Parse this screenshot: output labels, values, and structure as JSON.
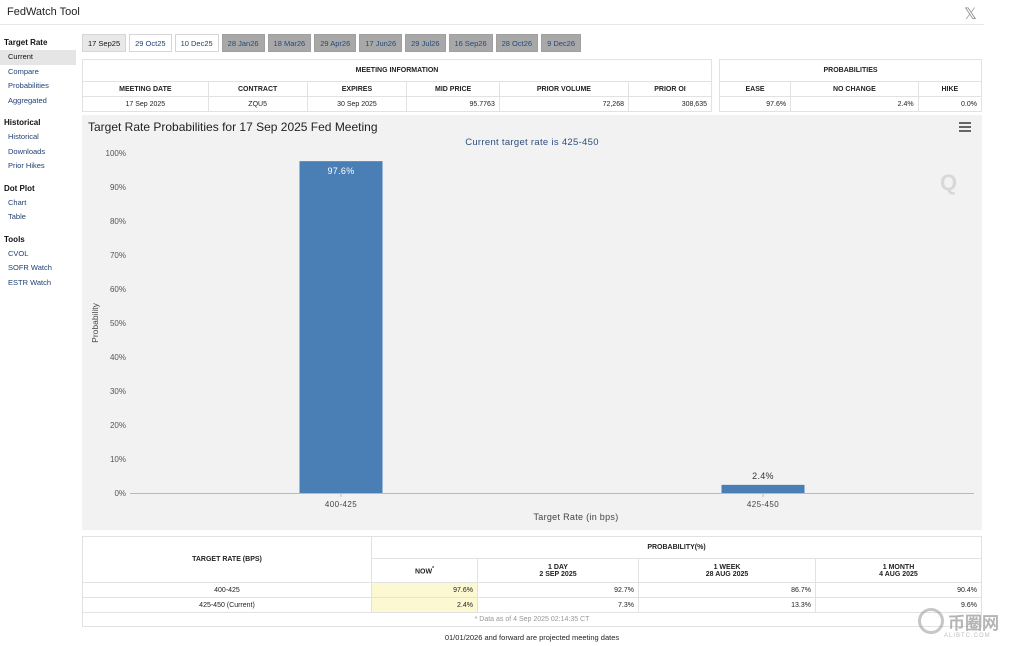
{
  "app": {
    "title": "FedWatch Tool",
    "x_icon": "𝕏"
  },
  "sidebar": {
    "sections": [
      {
        "title": "Target Rate",
        "items": [
          "Current",
          "Compare",
          "Probabilities",
          "Aggregated"
        ]
      },
      {
        "title": "Historical",
        "items": [
          "Historical",
          "Downloads",
          "Prior Hikes"
        ]
      },
      {
        "title": "Dot Plot",
        "items": [
          "Chart",
          "Table"
        ]
      },
      {
        "title": "Tools",
        "items": [
          "CVOL",
          "SOFR Watch",
          "ESTR Watch"
        ]
      }
    ],
    "active_item": "Current"
  },
  "tabs": [
    "17 Sep25",
    "29 Oct25",
    "10 Dec25",
    "28 Jan26",
    "18 Mar26",
    "29 Apr26",
    "17 Jun26",
    "29 Jul26",
    "16 Sep26",
    "28 Oct26",
    "9 Dec26"
  ],
  "meeting_info": {
    "section_title": "MEETING INFORMATION",
    "headers": [
      "MEETING DATE",
      "CONTRACT",
      "EXPIRES",
      "MID PRICE",
      "PRIOR VOLUME",
      "PRIOR OI"
    ],
    "values": [
      "17 Sep 2025",
      "ZQU5",
      "30 Sep 2025",
      "95.7763",
      "72,268",
      "308,635"
    ]
  },
  "probabilities": {
    "section_title": "PROBABILITIES",
    "headers": [
      "EASE",
      "NO CHANGE",
      "HIKE"
    ],
    "values": [
      "97.6%",
      "2.4%",
      "0.0%"
    ]
  },
  "chart_data": {
    "type": "bar",
    "title": "Target Rate Probabilities for 17 Sep 2025 Fed Meeting",
    "subtitle": "Current target rate is 425-450",
    "xlabel": "Target Rate (in bps)",
    "ylabel": "Probability",
    "categories": [
      "400-425",
      "425-450"
    ],
    "values": [
      97.6,
      2.4
    ],
    "data_labels": [
      "97.6%",
      "2.4%"
    ],
    "ylim": [
      0,
      100
    ],
    "yticks": [
      "0%",
      "10%",
      "20%",
      "30%",
      "40%",
      "50%",
      "60%",
      "70%",
      "80%",
      "90%",
      "100%"
    ],
    "bar_color": "#4a7fb5",
    "grid": false,
    "legend": "none"
  },
  "prob_table": {
    "row_header": "TARGET RATE (BPS)",
    "group_header": "PROBABILITY(%)",
    "columns": [
      {
        "line1": "NOW",
        "marker": "*",
        "line2": ""
      },
      {
        "line1": "1 DAY",
        "line2": "2 SEP 2025"
      },
      {
        "line1": "1 WEEK",
        "line2": "28 AUG 2025"
      },
      {
        "line1": "1 MONTH",
        "line2": "4 AUG 2025"
      }
    ],
    "rows": [
      {
        "rate": "400-425",
        "values": [
          "97.6%",
          "92.7%",
          "86.7%",
          "90.4%"
        ]
      },
      {
        "rate": "425-450 (Current)",
        "values": [
          "2.4%",
          "7.3%",
          "13.3%",
          "9.6%"
        ]
      }
    ],
    "footnote": "* Data as of 4 Sep 2025 02:14:35 CT"
  },
  "bottom_note": "01/01/2026 and forward are projected meeting dates",
  "watermark": {
    "text": "币圈网",
    "sub": "ALIBTC.COM"
  }
}
